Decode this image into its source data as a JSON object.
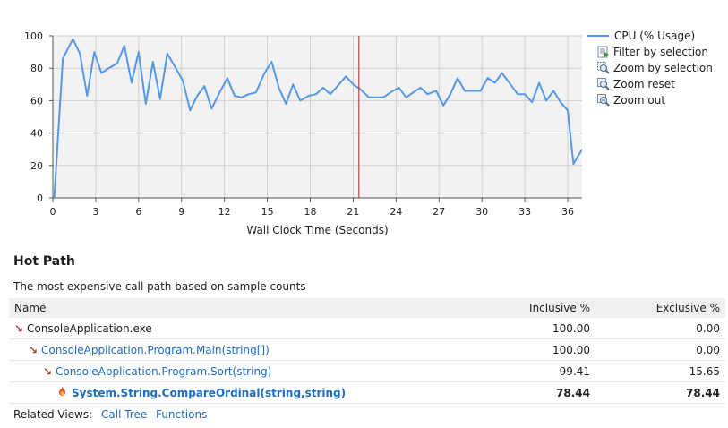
{
  "chart_data": {
    "type": "line",
    "xlabel": "Wall Clock Time (Seconds)",
    "ylabel": "",
    "xlim": [
      0,
      37
    ],
    "ylim": [
      0,
      100
    ],
    "x_ticks": [
      0,
      3,
      6,
      9,
      12,
      15,
      18,
      21,
      24,
      27,
      30,
      33,
      36
    ],
    "y_ticks": [
      0,
      20,
      40,
      60,
      80,
      100
    ],
    "grid": true,
    "legend_position": "right",
    "marker_x": 21.4,
    "series": [
      {
        "name": "CPU (% Usage)",
        "color": "#5599e6",
        "points": [
          [
            0.1,
            0
          ],
          [
            0.7,
            86
          ],
          [
            1.4,
            98
          ],
          [
            1.9,
            89
          ],
          [
            2.4,
            63
          ],
          [
            2.9,
            90
          ],
          [
            3.4,
            77
          ],
          [
            3.9,
            80
          ],
          [
            4.5,
            83
          ],
          [
            5.0,
            94
          ],
          [
            5.5,
            71
          ],
          [
            6.0,
            90
          ],
          [
            6.5,
            58
          ],
          [
            7.0,
            84
          ],
          [
            7.5,
            61
          ],
          [
            8.0,
            89
          ],
          [
            8.6,
            80
          ],
          [
            9.1,
            72
          ],
          [
            9.6,
            54
          ],
          [
            10.1,
            63
          ],
          [
            10.6,
            69
          ],
          [
            11.1,
            55
          ],
          [
            11.6,
            64
          ],
          [
            12.2,
            74
          ],
          [
            12.7,
            63
          ],
          [
            13.2,
            62
          ],
          [
            13.7,
            64
          ],
          [
            14.2,
            65
          ],
          [
            14.8,
            77
          ],
          [
            15.3,
            84
          ],
          [
            15.8,
            68
          ],
          [
            16.3,
            58
          ],
          [
            16.8,
            70
          ],
          [
            17.3,
            60
          ],
          [
            17.9,
            63
          ],
          [
            18.4,
            64
          ],
          [
            18.9,
            68
          ],
          [
            19.4,
            64
          ],
          [
            19.9,
            69
          ],
          [
            20.5,
            75
          ],
          [
            21.0,
            70
          ],
          [
            21.5,
            67
          ],
          [
            22.1,
            62
          ],
          [
            22.6,
            62
          ],
          [
            23.1,
            62
          ],
          [
            23.6,
            65
          ],
          [
            24.2,
            68
          ],
          [
            24.7,
            62
          ],
          [
            25.2,
            65
          ],
          [
            25.7,
            68
          ],
          [
            26.2,
            64
          ],
          [
            26.8,
            66
          ],
          [
            27.3,
            57
          ],
          [
            27.8,
            64
          ],
          [
            28.3,
            74
          ],
          [
            28.8,
            66
          ],
          [
            29.4,
            66
          ],
          [
            29.9,
            66
          ],
          [
            30.4,
            74
          ],
          [
            30.9,
            71
          ],
          [
            31.4,
            77
          ],
          [
            32.0,
            70
          ],
          [
            32.5,
            64
          ],
          [
            33.0,
            64
          ],
          [
            33.5,
            59
          ],
          [
            34.0,
            71
          ],
          [
            34.5,
            60
          ],
          [
            35.0,
            66
          ],
          [
            35.5,
            59
          ],
          [
            36.0,
            54
          ],
          [
            36.4,
            21
          ],
          [
            37.0,
            30
          ]
        ]
      }
    ]
  },
  "legend": {
    "commands": [
      {
        "label": "Filter by selection",
        "icon": "filter-icon"
      },
      {
        "label": "Zoom by selection",
        "icon": "zoom-selection-icon"
      },
      {
        "label": "Zoom reset",
        "icon": "zoom-reset-icon"
      },
      {
        "label": "Zoom out",
        "icon": "zoom-out-icon"
      }
    ]
  },
  "hot_path": {
    "title": "Hot Path",
    "description": "The most expensive call path based on sample counts",
    "columns": {
      "name": "Name",
      "inclusive": "Inclusive %",
      "exclusive": "Exclusive %"
    },
    "rows": [
      {
        "name": "ConsoleApplication.exe",
        "inclusive": "100.00",
        "exclusive": "0.00",
        "icon": "hot-path-arrow-icon"
      },
      {
        "name": "ConsoleApplication.Program.Main(string[])",
        "inclusive": "100.00",
        "exclusive": "0.00",
        "icon": "hot-path-arrow-icon"
      },
      {
        "name": "ConsoleApplication.Program.Sort(string)",
        "inclusive": "99.41",
        "exclusive": "15.65",
        "icon": "hot-path-arrow-icon"
      },
      {
        "name": "System.String.CompareOrdinal(string,string)",
        "inclusive": "78.44",
        "exclusive": "78.44",
        "icon": "flame-icon"
      }
    ]
  },
  "related": {
    "label": "Related Views:",
    "links": [
      "Call Tree",
      "Functions"
    ]
  }
}
